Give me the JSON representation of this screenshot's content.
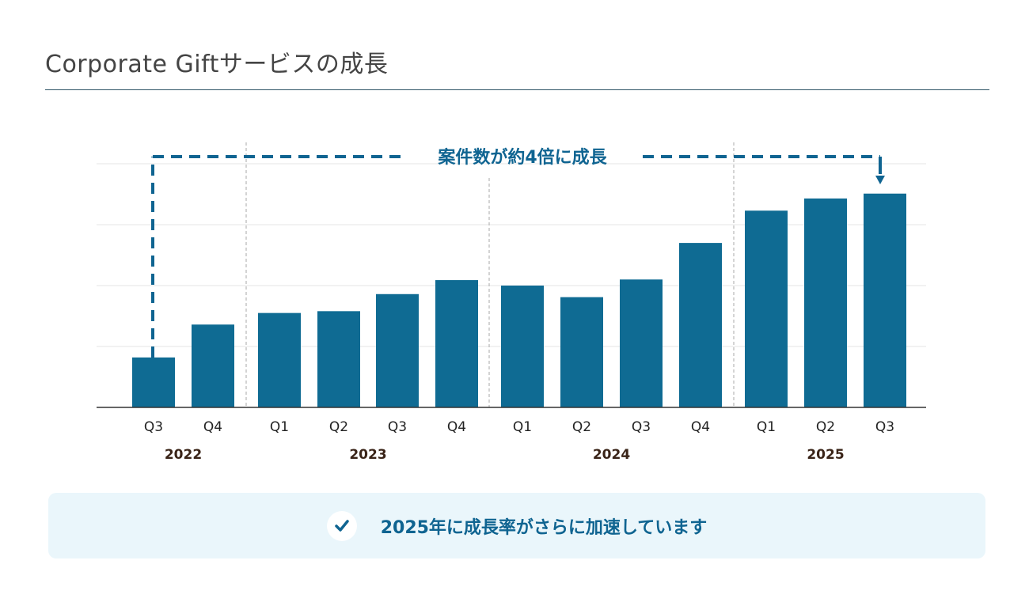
{
  "title": "Corporate Giftサービスの成長",
  "colors": {
    "bar": "#0f6b93",
    "accent": "#0f6491",
    "grid": "#e6e6e6",
    "year": "#3a2418"
  },
  "chart_data": {
    "type": "bar",
    "title": "Corporate Giftサービスの成長",
    "xlabel": "",
    "ylabel": "",
    "categories": [
      "Q3",
      "Q4",
      "Q1",
      "Q2",
      "Q3",
      "Q4",
      "Q1",
      "Q2",
      "Q3",
      "Q4",
      "Q1",
      "Q2",
      "Q3"
    ],
    "years": [
      {
        "label": "2022",
        "count": 2
      },
      {
        "label": "2023",
        "count": 4
      },
      {
        "label": "2024",
        "count": 4
      },
      {
        "label": "2025",
        "count": 3
      }
    ],
    "values": [
      0.82,
      1.36,
      1.55,
      1.58,
      1.86,
      2.09,
      2.0,
      1.81,
      2.1,
      2.7,
      3.23,
      3.43,
      3.51
    ],
    "ylim": [
      0,
      4.35
    ],
    "grid": true,
    "annotation": "案件数が約4倍に成長"
  },
  "note": {
    "text": "2025年に成長率がさらに加速しています",
    "icon": "check-icon"
  }
}
